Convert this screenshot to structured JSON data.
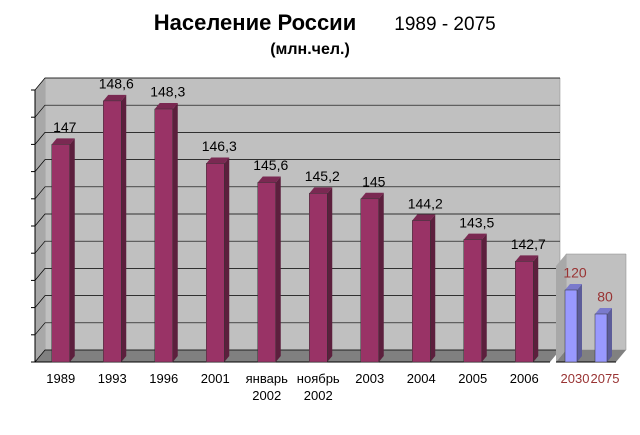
{
  "chart_data": [
    {
      "type": "bar3d",
      "title": "Население России",
      "period": "1989 - 2075",
      "subtitle": "(млн.чел.)",
      "categories": [
        "1989",
        "1993",
        "1996",
        "2001",
        "январь 2002",
        "ноябрь 2002",
        "2003",
        "2004",
        "2005",
        "2006"
      ],
      "values": [
        147,
        148.6,
        148.3,
        146.3,
        145.6,
        145.2,
        145,
        144.2,
        143.5,
        142.7
      ],
      "value_labels": [
        "147",
        "148,6",
        "148,3",
        "146,3",
        "145,6",
        "145,2",
        "145",
        "144,2",
        "143,5",
        "142,7"
      ],
      "color": "#993366",
      "ylim": [
        139,
        149
      ],
      "yticks": [
        139,
        140,
        141,
        142,
        143,
        144,
        145,
        146,
        147,
        148,
        149
      ],
      "grid": true
    },
    {
      "type": "bar3d",
      "categories": [
        "2030",
        "2075"
      ],
      "values": [
        120,
        80
      ],
      "color": "#9999ff",
      "label_color": "#993333",
      "ylim": [
        0,
        160
      ]
    }
  ]
}
